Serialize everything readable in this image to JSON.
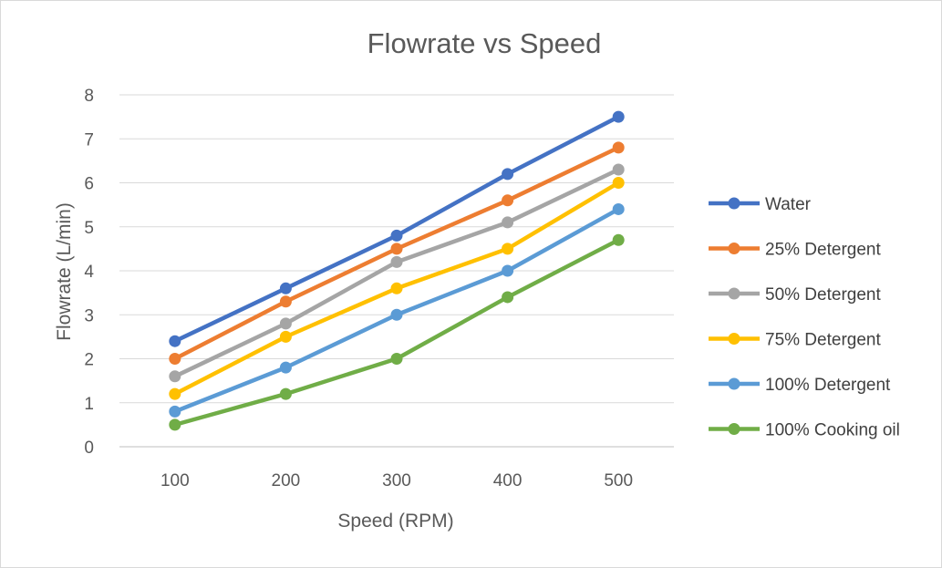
{
  "chart_data": {
    "type": "line",
    "title": "Flowrate vs Speed",
    "xlabel": "Speed (RPM)",
    "ylabel": "Flowrate (L/min)",
    "categories": [
      "100",
      "200",
      "300",
      "400",
      "500"
    ],
    "ylim": [
      0,
      8
    ],
    "yticks": [
      "0",
      "1",
      "2",
      "3",
      "4",
      "5",
      "6",
      "7",
      "8"
    ],
    "grid": true,
    "legend_position": "right",
    "series": [
      {
        "name": "Water",
        "color": "#4472C4",
        "values": [
          2.4,
          3.6,
          4.8,
          6.2,
          7.5
        ]
      },
      {
        "name": "25% Detergent",
        "color": "#ED7D31",
        "values": [
          2.0,
          3.3,
          4.5,
          5.6,
          6.8
        ]
      },
      {
        "name": "50% Detergent",
        "color": "#A5A5A5",
        "values": [
          1.6,
          2.8,
          4.2,
          5.1,
          6.3
        ]
      },
      {
        "name": "75% Detergent",
        "color": "#FFC000",
        "values": [
          1.2,
          2.5,
          3.6,
          4.5,
          6.0
        ]
      },
      {
        "name": "100% Detergent",
        "color": "#5B9BD5",
        "values": [
          0.8,
          1.8,
          3.0,
          4.0,
          5.4
        ]
      },
      {
        "name": "100% Cooking oil",
        "color": "#70AD47",
        "values": [
          0.5,
          1.2,
          2.0,
          3.4,
          4.7
        ]
      }
    ]
  }
}
